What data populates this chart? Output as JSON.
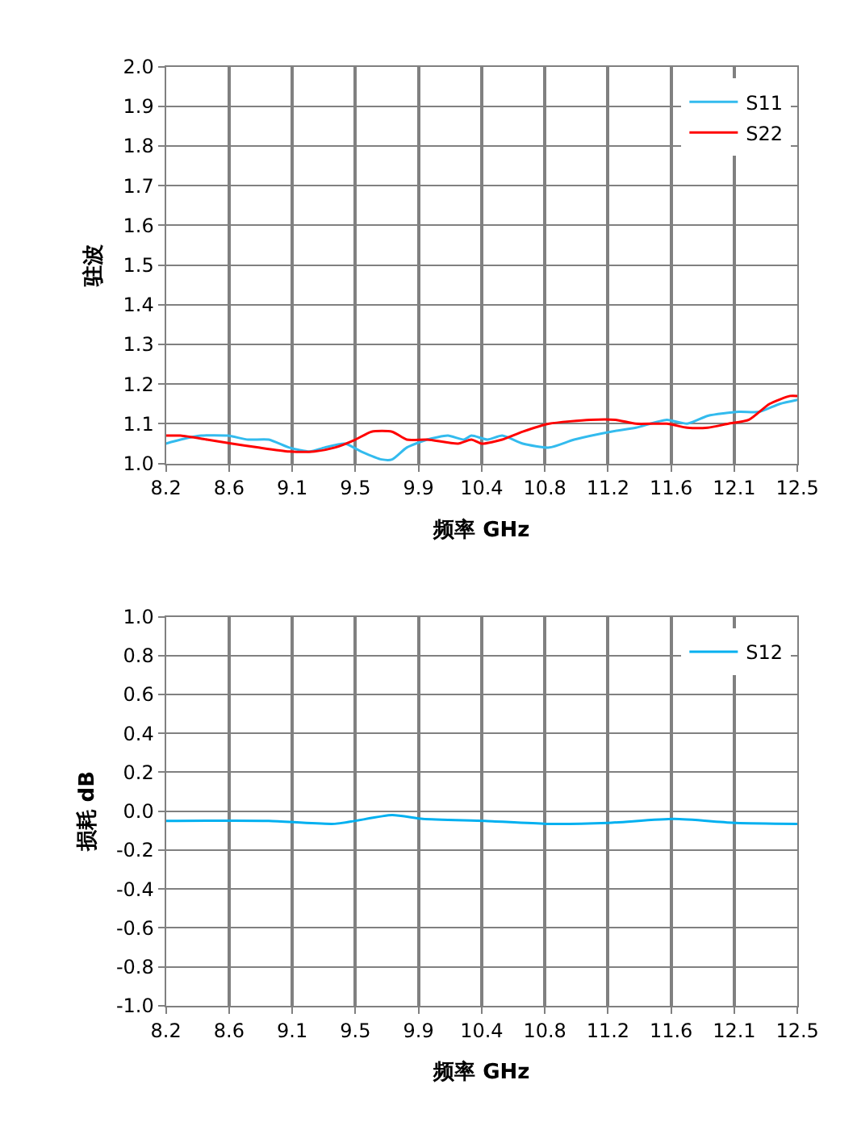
{
  "chart_data": [
    {
      "type": "line",
      "xlabel": "频率 GHz",
      "ylabel": "驻波",
      "xlim": [
        8.2,
        12.5
      ],
      "ylim": [
        1.0,
        2.0
      ],
      "xticks": [
        {
          "value": 8.2,
          "label": "8.2"
        },
        {
          "value": 8.63,
          "label": "8.6"
        },
        {
          "value": 9.06,
          "label": "9.1"
        },
        {
          "value": 9.49,
          "label": "9.5"
        },
        {
          "value": 9.92,
          "label": "9.9"
        },
        {
          "value": 10.35,
          "label": "10.4"
        },
        {
          "value": 10.78,
          "label": "10.8"
        },
        {
          "value": 11.21,
          "label": "11.2"
        },
        {
          "value": 11.64,
          "label": "11.6"
        },
        {
          "value": 12.07,
          "label": "12.1"
        },
        {
          "value": 12.5,
          "label": "12.5"
        }
      ],
      "yticks": [
        {
          "value": 1.0,
          "label": "1.0"
        },
        1.1,
        1.2,
        1.3,
        1.4,
        1.5,
        1.6,
        1.7,
        1.8,
        1.9,
        {
          "value": 2.0,
          "label": "2.0"
        }
      ],
      "grid": true,
      "legend": "top right",
      "marker": "none",
      "line_style": "solid",
      "series": [
        {
          "name": "S11",
          "color": "#33bbee",
          "x": [
            8.2,
            8.3,
            8.44,
            8.62,
            8.76,
            8.9,
            9.04,
            9.18,
            9.28,
            9.42,
            9.53,
            9.67,
            9.74,
            9.84,
            9.98,
            10.12,
            10.23,
            10.28,
            10.39,
            10.49,
            10.63,
            10.81,
            10.98,
            11.23,
            11.4,
            11.61,
            11.75,
            11.89,
            12.1,
            12.24,
            12.38,
            12.5
          ],
          "values": [
            1.05,
            1.06,
            1.07,
            1.07,
            1.06,
            1.06,
            1.04,
            1.03,
            1.04,
            1.05,
            1.03,
            1.01,
            1.01,
            1.04,
            1.06,
            1.07,
            1.06,
            1.07,
            1.06,
            1.07,
            1.05,
            1.04,
            1.06,
            1.08,
            1.09,
            1.11,
            1.1,
            1.12,
            1.13,
            1.13,
            1.15,
            1.16
          ]
        },
        {
          "name": "S22",
          "color": "#ff0000",
          "x": [
            8.2,
            8.3,
            8.48,
            8.65,
            8.83,
            9.04,
            9.21,
            9.35,
            9.49,
            9.6,
            9.74,
            9.84,
            9.98,
            10.19,
            10.28,
            10.35,
            10.49,
            10.63,
            10.81,
            11.09,
            11.26,
            11.4,
            11.61,
            11.75,
            11.89,
            12.03,
            12.17,
            12.31,
            12.45,
            12.5
          ],
          "values": [
            1.07,
            1.07,
            1.06,
            1.05,
            1.04,
            1.03,
            1.03,
            1.04,
            1.06,
            1.08,
            1.08,
            1.06,
            1.06,
            1.05,
            1.06,
            1.05,
            1.06,
            1.08,
            1.1,
            1.11,
            1.11,
            1.1,
            1.1,
            1.09,
            1.09,
            1.1,
            1.11,
            1.15,
            1.17,
            1.17
          ]
        }
      ]
    },
    {
      "type": "line",
      "xlabel": "频率 GHz",
      "ylabel": "损耗 dB",
      "xlim": [
        8.2,
        12.5
      ],
      "ylim": [
        -1.0,
        1.0
      ],
      "xticks": [
        {
          "value": 8.2,
          "label": "8.2"
        },
        {
          "value": 8.63,
          "label": "8.6"
        },
        {
          "value": 9.06,
          "label": "9.1"
        },
        {
          "value": 9.49,
          "label": "9.5"
        },
        {
          "value": 9.92,
          "label": "9.9"
        },
        {
          "value": 10.35,
          "label": "10.4"
        },
        {
          "value": 10.78,
          "label": "10.8"
        },
        {
          "value": 11.21,
          "label": "11.2"
        },
        {
          "value": 11.64,
          "label": "11.6"
        },
        {
          "value": 12.07,
          "label": "12.1"
        },
        {
          "value": 12.5,
          "label": "12.5"
        }
      ],
      "yticks": [
        {
          "value": -1.0,
          "label": "-1.0"
        },
        -0.8,
        -0.6,
        -0.4,
        -0.2,
        {
          "value": 0,
          "label": "0.0"
        },
        0.2,
        0.4,
        0.6,
        0.8,
        {
          "value": 1.0,
          "label": "1.0"
        }
      ],
      "grid": true,
      "legend": "top right",
      "marker": "none",
      "line_style": "solid",
      "series": [
        {
          "name": "S12",
          "color": "#00b0f0",
          "x": [
            8.2,
            8.9,
            9.35,
            9.74,
            9.95,
            10.37,
            10.79,
            11.21,
            11.66,
            12.08,
            12.5
          ],
          "values": [
            -0.05,
            -0.05,
            -0.065,
            -0.02,
            -0.04,
            -0.05,
            -0.065,
            -0.06,
            -0.04,
            -0.06,
            -0.065
          ]
        }
      ]
    }
  ]
}
